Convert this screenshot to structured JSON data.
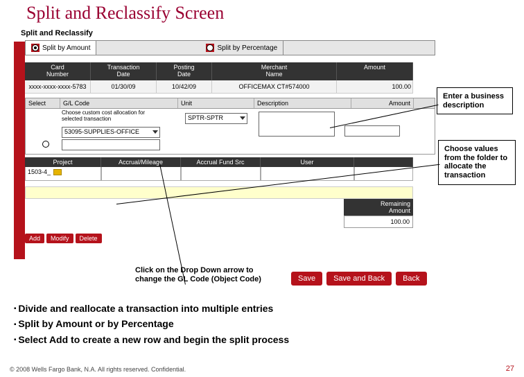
{
  "slide": {
    "title": "Split and Reclassify Screen",
    "pageNumber": "27",
    "footer": "© 2008 Wells Fargo Bank, N.A. All rights reserved. Confidential."
  },
  "app": {
    "subtitle": "Split and Reclassify",
    "tabs": {
      "amount": "Split by Amount",
      "percent": "Split by Percentage"
    },
    "txHead": {
      "card": "Card\nNumber",
      "tran": "Transaction\nDate",
      "post": "Posting\nDate",
      "merch": "Merchant\nName",
      "amt": "Amount"
    },
    "txRow": {
      "card": "xxxx-xxxx-xxxx-5783",
      "tran": "01/30/09",
      "post": "10/42/09",
      "merch": "OFFICEMAX CT#574000",
      "amt": "100.00"
    },
    "filterHead": {
      "select": "Select",
      "gl": "G/L Code",
      "unit": "Unit",
      "desc": "Description",
      "amt": "Amount"
    },
    "filterVals": {
      "browse": "Choose custom cost allocation for\nselected transaction",
      "gl": "53095-SUPPLIES-OFFICE",
      "unit": "SPTR-SPTR"
    },
    "sub2Head": {
      "proj": "Project",
      "mil": "Accrual/Mileage",
      "fund": "Accrual Fund Src",
      "unk": "User"
    },
    "sub2Row": {
      "proj": "1503-4_"
    },
    "remaining": {
      "label": "Remaining\nAmount",
      "value": "100.00"
    },
    "miniBtns": {
      "add": "Add",
      "modify": "Modify",
      "delete": "Delete"
    },
    "mainBtns": {
      "save": "Save",
      "saveback": "Save and Back",
      "back": "Back"
    }
  },
  "callouts": {
    "desc": "Enter a business description",
    "folder": "Choose values from the folder to allocate the transaction",
    "gl": "Click on the Drop Down arrow to change the GL Code (Object Code)"
  },
  "bullets": {
    "b1": "Divide and reallocate a transaction into multiple entries",
    "b2": "Split by Amount or by Percentage",
    "b3": "Select Add to create a new row and begin the split process"
  }
}
